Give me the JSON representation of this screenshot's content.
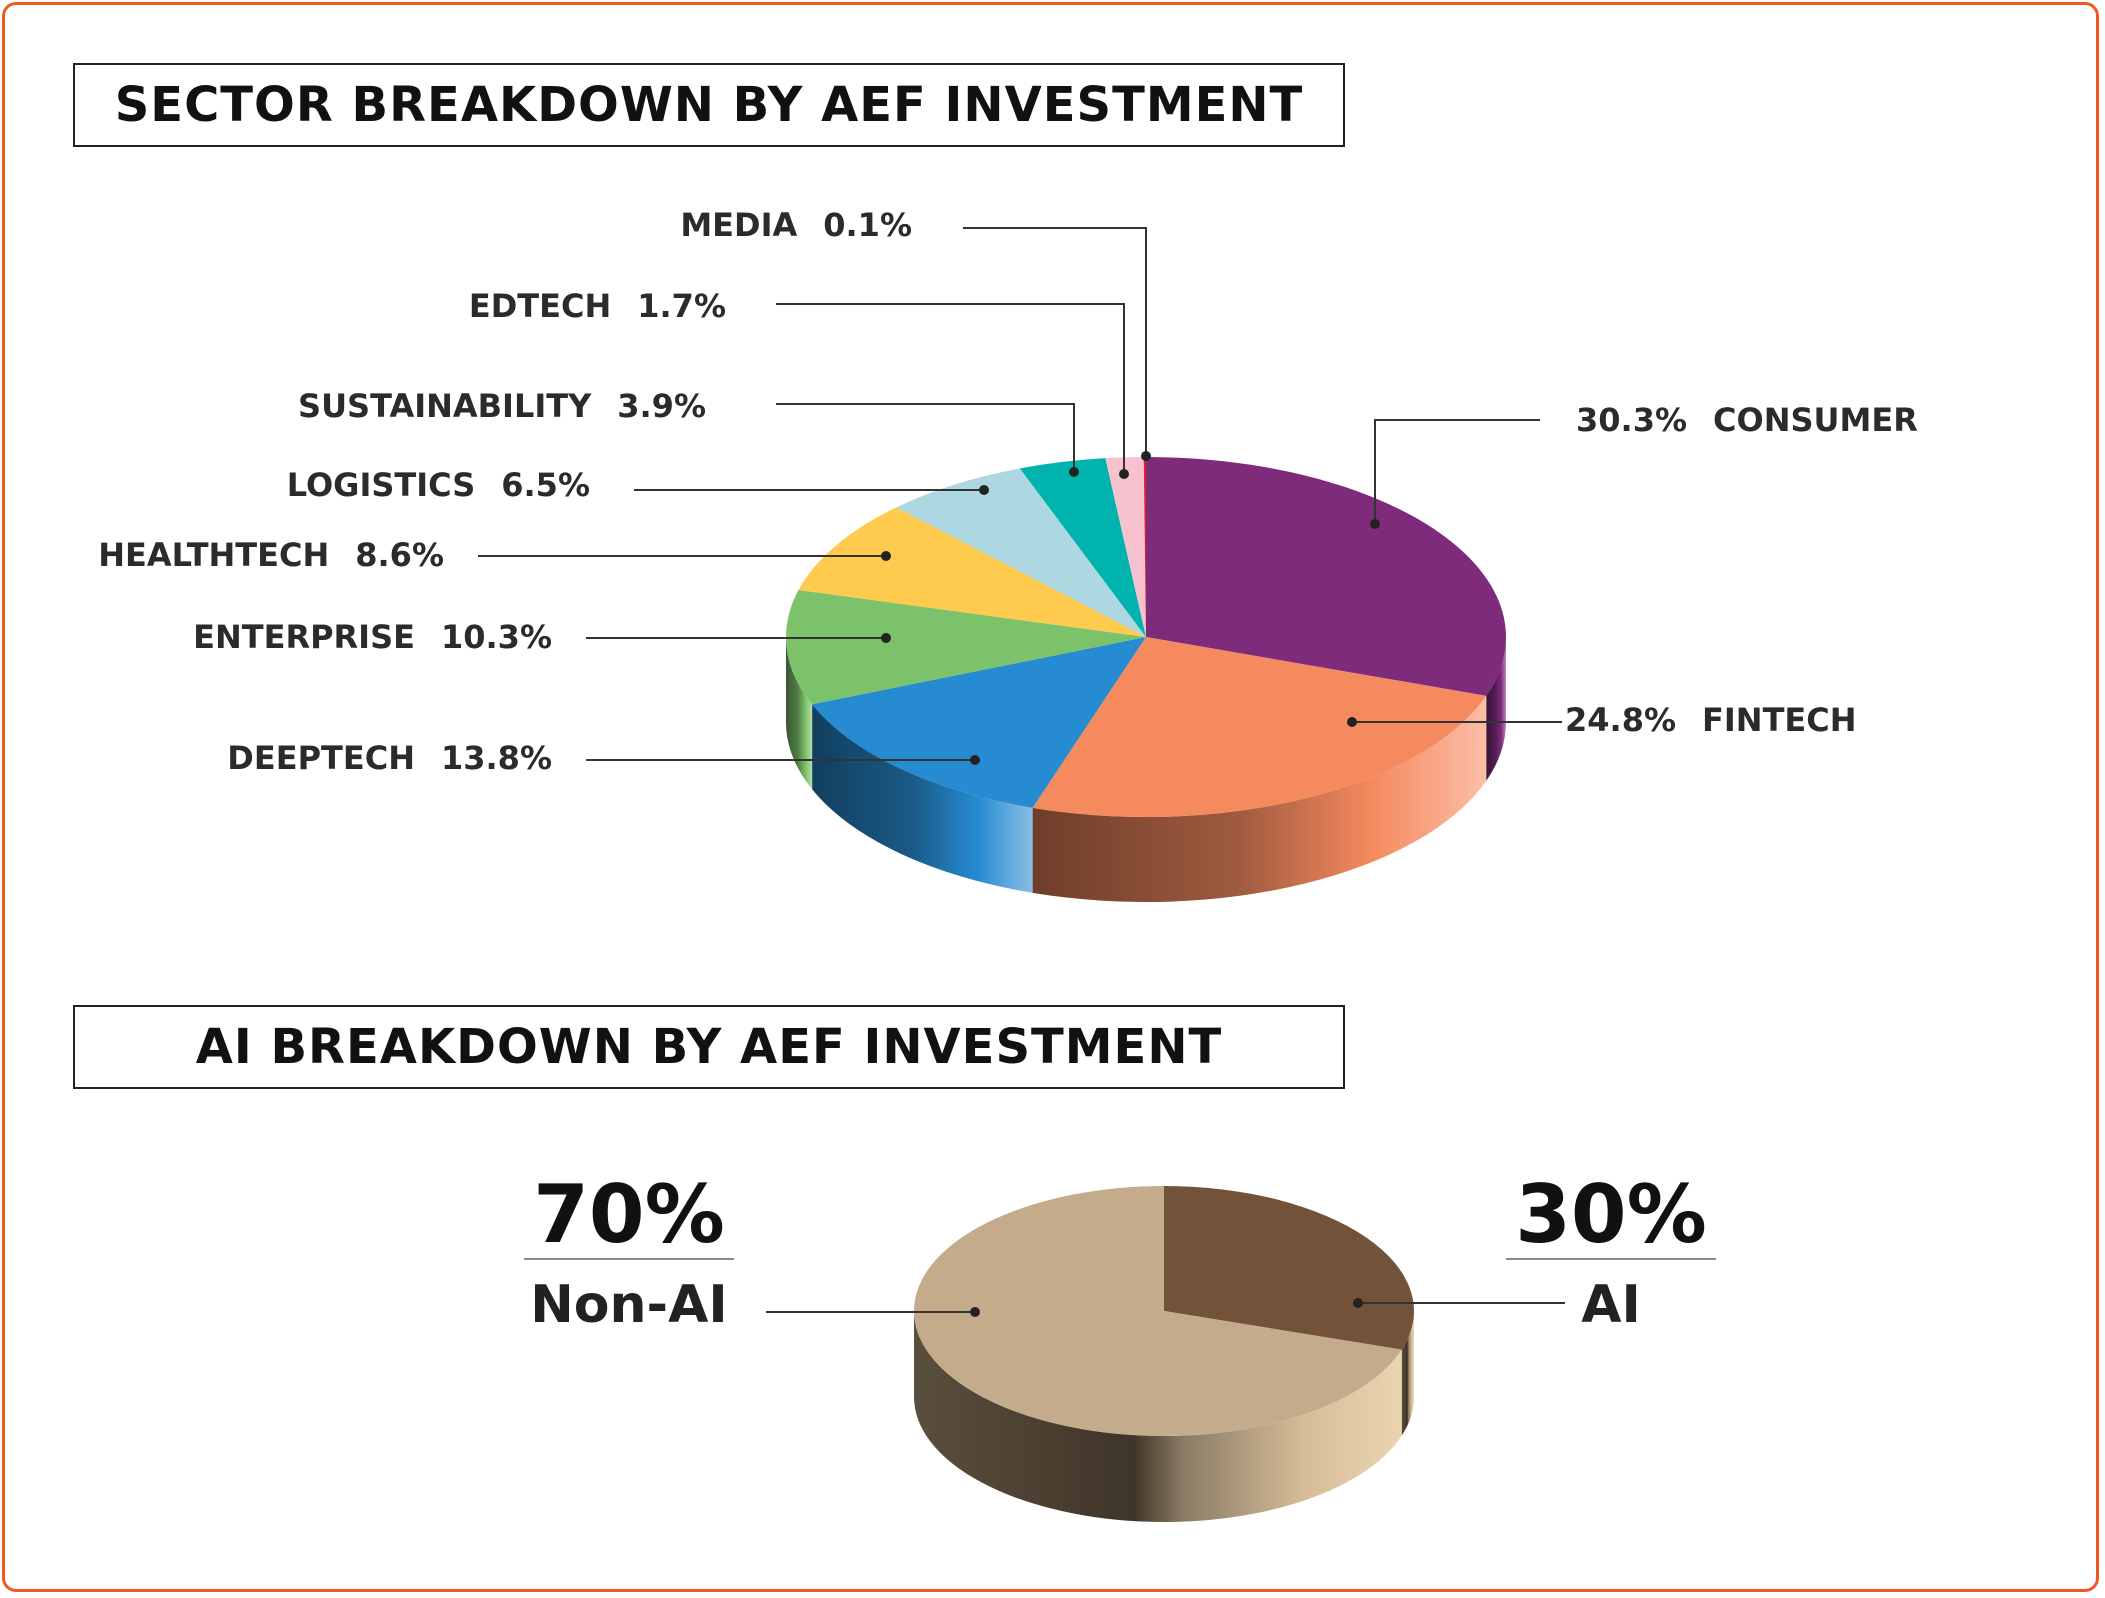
{
  "titles": {
    "sector": "SECTOR BREAKDOWN BY AEF INVESTMENT",
    "ai": "AI BREAKDOWN BY AEF INVESTMENT"
  },
  "chart_data": [
    {
      "type": "pie",
      "title": "SECTOR BREAKDOWN BY AEF INVESTMENT",
      "style": "3d",
      "slices": [
        {
          "name": "CONSUMER",
          "value": 30.3,
          "label": "30.3%",
          "color": "#7f2b7c"
        },
        {
          "name": "FINTECH",
          "value": 24.8,
          "label": "24.8%",
          "color": "#f58a5f"
        },
        {
          "name": "DEEPTECH",
          "value": 13.8,
          "label": "13.8%",
          "color": "#268bd0"
        },
        {
          "name": "ENTERPRISE",
          "value": 10.3,
          "label": "10.3%",
          "color": "#7cc26a"
        },
        {
          "name": "HEALTHTECH",
          "value": 8.6,
          "label": "8.6%",
          "color": "#fecb4f"
        },
        {
          "name": "LOGISTICS",
          "value": 6.5,
          "label": "6.5%",
          "color": "#add8e2"
        },
        {
          "name": "SUSTAINABILITY",
          "value": 3.9,
          "label": "3.9%",
          "color": "#00b3ad"
        },
        {
          "name": "EDTECH",
          "value": 1.7,
          "label": "1.7%",
          "color": "#f7c2d0"
        },
        {
          "name": "MEDIA",
          "value": 0.1,
          "label": "0.1%",
          "color": "#d8232a"
        }
      ]
    },
    {
      "type": "pie",
      "title": "AI BREAKDOWN BY AEF INVESTMENT",
      "style": "3d",
      "slices": [
        {
          "name": "AI",
          "value": 30,
          "label": "30%",
          "color": "#73523a"
        },
        {
          "name": "Non-AI",
          "value": 70,
          "label": "70%",
          "color": "#c4ab8c"
        }
      ]
    }
  ]
}
